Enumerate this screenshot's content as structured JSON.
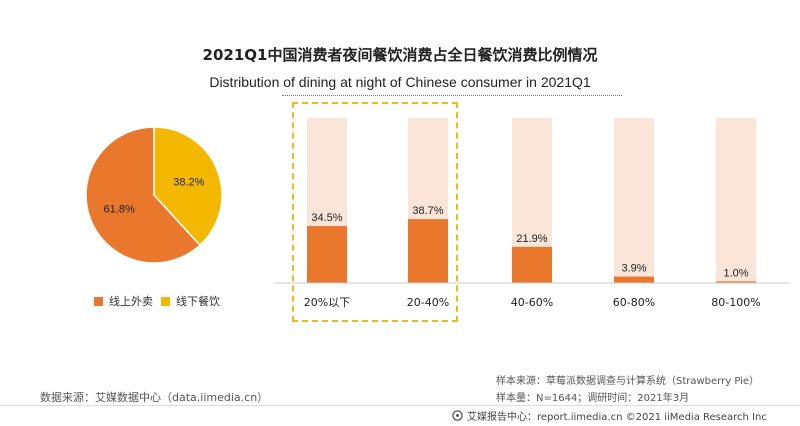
{
  "title_cn": "2021Q1中国消费者夜间餐饮消费占全日餐饮消费比例情况",
  "title_en": "Distribution of dining at night  of Chinese consumer in 2021Q1",
  "colors": {
    "orange": "#E9782C",
    "yellow": "#F5B800",
    "bar_bg": "#FBE5D8",
    "highlight": "#F0BA1A"
  },
  "pie": {
    "slices": [
      {
        "name": "线上外卖",
        "value": 61.8,
        "label": "61.8%",
        "color": "#E9782C"
      },
      {
        "name": "线下餐饮",
        "value": 38.2,
        "label": "38.2%",
        "color": "#F5B800"
      }
    ]
  },
  "chart_data": [
    {
      "type": "pie",
      "categories": [
        "线上外卖",
        "线下餐饮"
      ],
      "values": [
        61.8,
        38.2
      ],
      "legend": "bottom"
    },
    {
      "type": "bar",
      "categories": [
        "20%以下",
        "20-40%",
        "40-60%",
        "60-80%",
        "80-100%"
      ],
      "values": [
        34.5,
        38.7,
        21.9,
        3.9,
        1.0
      ],
      "value_labels": [
        "34.5%",
        "38.7%",
        "21.9%",
        "3.9%",
        "1.0%"
      ],
      "ylim": [
        0,
        100
      ],
      "highlighted_categories": [
        "20%以下",
        "20-40%"
      ]
    }
  ],
  "source_left": "数据来源：艾媒数据中心（data.iimedia.cn）",
  "sample_source": "样本来源：草莓派数据调查与计算系统（Strawberry Pie）",
  "sample_size": "样本量：N=1644；调研时间：2021年3月",
  "footer": "艾媒报告中心：report.iimedia.cn  ©2021  iiMedia Research  Inc"
}
